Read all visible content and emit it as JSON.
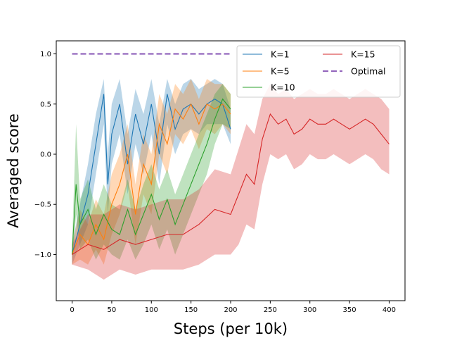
{
  "chart_data": {
    "type": "line",
    "title": "",
    "xlabel": "Steps (per 10k)",
    "ylabel": "Averaged score",
    "xlim": [
      -20,
      420
    ],
    "ylim": [
      -1.46,
      1.13
    ],
    "xticks": [
      0,
      50,
      100,
      150,
      200,
      250,
      300,
      350,
      400
    ],
    "yticks": [
      -1.0,
      -0.5,
      0.0,
      0.5,
      1.0
    ],
    "ytick_labels": [
      "−1.0",
      "−0.5",
      "0.0",
      "0.5",
      "1.0"
    ],
    "grid": false,
    "legend": {
      "placement": "top-right",
      "columns": 2
    },
    "series": [
      {
        "name": "K=1",
        "color": "#1f77b4",
        "band_alpha": 0.3,
        "style": "solid",
        "x": [
          0,
          20,
          30,
          40,
          45,
          50,
          60,
          70,
          80,
          90,
          100,
          110,
          120,
          130,
          140,
          150,
          160,
          170,
          180,
          190,
          200
        ],
        "y": [
          -1.0,
          -0.4,
          0.1,
          0.6,
          -0.3,
          0.2,
          0.5,
          -0.1,
          0.4,
          0.1,
          0.5,
          0.0,
          0.6,
          0.25,
          0.45,
          0.5,
          0.4,
          0.5,
          0.55,
          0.5,
          0.25
        ],
        "lower": [
          -1.1,
          -0.7,
          -0.2,
          0.3,
          -0.6,
          -0.1,
          0.2,
          -0.4,
          0.1,
          -0.2,
          0.2,
          -0.3,
          0.3,
          0.0,
          0.2,
          0.25,
          0.2,
          0.3,
          0.3,
          0.3,
          0.1
        ],
        "upper": [
          -0.9,
          -0.1,
          0.4,
          0.75,
          0.0,
          0.5,
          0.75,
          0.2,
          0.65,
          0.4,
          0.75,
          0.3,
          0.75,
          0.5,
          0.7,
          0.75,
          0.65,
          0.7,
          0.75,
          0.7,
          0.45
        ]
      },
      {
        "name": "K=5",
        "color": "#ff7f0e",
        "band_alpha": 0.3,
        "style": "solid",
        "x": [
          0,
          10,
          20,
          30,
          40,
          50,
          60,
          70,
          80,
          90,
          100,
          110,
          120,
          130,
          140,
          150,
          160,
          170,
          180,
          190,
          200
        ],
        "y": [
          -1.0,
          -0.8,
          -0.9,
          -0.7,
          -0.85,
          -0.5,
          -0.3,
          0.0,
          -0.6,
          -0.1,
          -0.3,
          0.3,
          0.1,
          0.45,
          0.35,
          0.5,
          0.3,
          0.5,
          0.45,
          0.5,
          0.4
        ],
        "lower": [
          -1.1,
          -1.05,
          -1.1,
          -0.95,
          -1.1,
          -0.8,
          -0.6,
          -0.3,
          -0.9,
          -0.4,
          -0.6,
          0.0,
          -0.2,
          0.2,
          0.1,
          0.25,
          0.05,
          0.25,
          0.2,
          0.3,
          0.2
        ],
        "upper": [
          -0.9,
          -0.55,
          -0.7,
          -0.45,
          -0.6,
          -0.2,
          0.0,
          0.3,
          -0.3,
          0.2,
          0.0,
          0.6,
          0.4,
          0.7,
          0.6,
          0.75,
          0.55,
          0.75,
          0.7,
          0.7,
          0.6
        ]
      },
      {
        "name": "K=10",
        "color": "#2ca02c",
        "band_alpha": 0.3,
        "style": "solid",
        "x": [
          0,
          5,
          10,
          20,
          30,
          40,
          50,
          60,
          70,
          80,
          90,
          100,
          110,
          120,
          130,
          140,
          150,
          160,
          170,
          180,
          190,
          200
        ],
        "y": [
          -1.0,
          -0.3,
          -0.7,
          -0.55,
          -0.8,
          -0.6,
          -0.75,
          -0.8,
          -0.55,
          -0.8,
          -0.6,
          -0.4,
          -0.65,
          -0.45,
          -0.7,
          -0.5,
          -0.3,
          -0.1,
          0.1,
          0.35,
          0.55,
          0.45
        ],
        "lower": [
          -1.1,
          -0.6,
          -0.95,
          -0.85,
          -1.05,
          -0.9,
          -1.0,
          -1.05,
          -0.85,
          -1.05,
          -0.9,
          -0.7,
          -0.95,
          -0.75,
          -1.0,
          -0.8,
          -0.6,
          -0.4,
          -0.2,
          0.1,
          0.3,
          0.25
        ],
        "upper": [
          -0.9,
          0.3,
          -0.45,
          -0.25,
          -0.55,
          -0.3,
          -0.5,
          -0.55,
          -0.25,
          -0.55,
          -0.3,
          -0.1,
          -0.35,
          -0.15,
          -0.4,
          -0.2,
          0.0,
          0.2,
          0.4,
          0.6,
          0.7,
          0.6
        ]
      },
      {
        "name": "K=15",
        "color": "#d62728",
        "band_alpha": 0.3,
        "style": "solid",
        "x": [
          0,
          20,
          40,
          60,
          80,
          100,
          120,
          140,
          160,
          180,
          200,
          210,
          220,
          230,
          240,
          250,
          260,
          270,
          280,
          290,
          300,
          310,
          320,
          330,
          340,
          350,
          360,
          370,
          380,
          390,
          400
        ],
        "y": [
          -1.0,
          -0.9,
          -0.95,
          -0.85,
          -0.9,
          -0.85,
          -0.8,
          -0.8,
          -0.7,
          -0.55,
          -0.6,
          -0.4,
          -0.2,
          -0.3,
          0.15,
          0.4,
          0.3,
          0.35,
          0.2,
          0.25,
          0.35,
          0.3,
          0.3,
          0.35,
          0.3,
          0.25,
          0.3,
          0.35,
          0.3,
          0.2,
          0.1
        ],
        "lower": [
          -1.1,
          -1.15,
          -1.25,
          -1.15,
          -1.2,
          -1.15,
          -1.15,
          -1.15,
          -1.1,
          -1.0,
          -1.0,
          -0.9,
          -0.7,
          -0.75,
          -0.3,
          0.0,
          -0.05,
          0.0,
          -0.15,
          -0.1,
          0.0,
          -0.05,
          -0.05,
          0.0,
          -0.05,
          -0.1,
          -0.05,
          0.0,
          -0.05,
          -0.15,
          -0.2
        ],
        "upper": [
          -0.9,
          -0.6,
          -0.6,
          -0.5,
          -0.55,
          -0.5,
          -0.45,
          -0.45,
          -0.35,
          -0.15,
          -0.2,
          0.05,
          0.3,
          0.2,
          0.55,
          0.7,
          0.6,
          0.65,
          0.55,
          0.6,
          0.65,
          0.6,
          0.6,
          0.65,
          0.6,
          0.55,
          0.6,
          0.65,
          0.6,
          0.55,
          0.45
        ]
      },
      {
        "name": "Optimal",
        "color": "#9467bd",
        "style": "dashed",
        "x": [
          0,
          200
        ],
        "y": [
          1.0,
          1.0
        ]
      }
    ]
  }
}
